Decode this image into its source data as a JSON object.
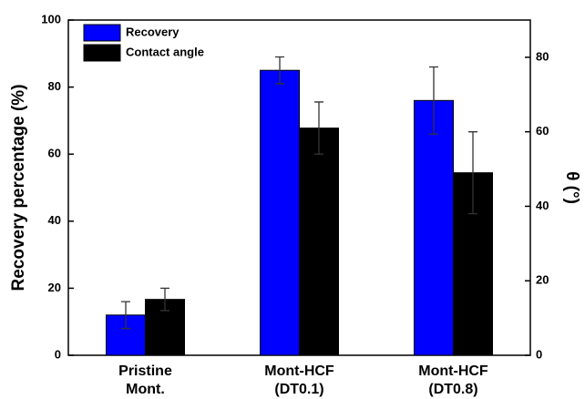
{
  "chart_data": {
    "type": "bar",
    "categories": [
      [
        "Pristine",
        "Mont."
      ],
      [
        "Mont-HCF",
        "(DT0.1)"
      ],
      [
        "Mont-HCF",
        "(DT0.8)"
      ]
    ],
    "series": [
      {
        "name": "Recovery",
        "color": "#0000ff",
        "values": [
          12,
          85,
          76
        ],
        "errors": [
          4,
          4,
          10
        ]
      },
      {
        "name": "Contact angle",
        "color": "#000000",
        "axis": "y2",
        "values": [
          15,
          61,
          49
        ],
        "errors": [
          3,
          7,
          11
        ]
      }
    ],
    "ylabel": "Recovery percentage (%)",
    "y2label": "θ (°)",
    "ylim": [
      0,
      100
    ],
    "yticks": [
      0,
      20,
      40,
      60,
      80,
      100
    ],
    "y2lim": [
      0,
      90
    ],
    "y2ticks": [
      0,
      20,
      40,
      60,
      80
    ],
    "legend": "upper left"
  }
}
